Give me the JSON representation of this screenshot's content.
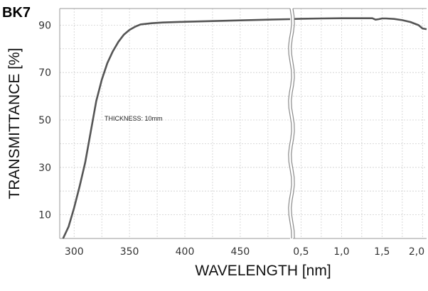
{
  "chart_data": {
    "type": "line",
    "title": "BK7",
    "xlabel": "WAVELENGTH [nm]",
    "ylabel": "TRANSMITTANCE [%]",
    "ylim": [
      0,
      97
    ],
    "grid": true,
    "broken_x_axis": true,
    "x_segments": [
      {
        "unit": "nm",
        "range": [
          287,
          495
        ],
        "ticks": [
          "300",
          "350",
          "400",
          "450"
        ]
      },
      {
        "unit": "µm",
        "range": [
          0.4,
          2.05
        ],
        "ticks": [
          "0,5",
          "1,0",
          "1,5",
          "2,0"
        ]
      }
    ],
    "y_ticks": [
      "10",
      "30",
      "50",
      "70",
      "90"
    ],
    "annotations": [
      "THICKNESS: 10mm"
    ],
    "series": [
      {
        "segment_1": [
          [
            290,
            0
          ],
          [
            295,
            5
          ],
          [
            300,
            13
          ],
          [
            305,
            22
          ],
          [
            310,
            32
          ],
          [
            315,
            45
          ],
          [
            320,
            58
          ],
          [
            325,
            67
          ],
          [
            330,
            74
          ],
          [
            335,
            79
          ],
          [
            340,
            83
          ],
          [
            345,
            86
          ],
          [
            350,
            88
          ],
          [
            355,
            89.3
          ],
          [
            360,
            90.3
          ],
          [
            370,
            90.8
          ],
          [
            380,
            91.1
          ],
          [
            400,
            91.4
          ],
          [
            425,
            91.7
          ],
          [
            450,
            92.0
          ],
          [
            475,
            92.3
          ],
          [
            495,
            92.5
          ]
        ],
        "segment_2": [
          [
            0.42,
            92.6
          ],
          [
            0.5,
            92.7
          ],
          [
            0.75,
            92.8
          ],
          [
            1.0,
            92.9
          ],
          [
            1.25,
            92.9
          ],
          [
            1.38,
            92.9
          ],
          [
            1.42,
            92.3
          ],
          [
            1.46,
            92.5
          ],
          [
            1.5,
            92.8
          ],
          [
            1.55,
            92.8
          ],
          [
            1.65,
            92.6
          ],
          [
            1.75,
            92.1
          ],
          [
            1.85,
            91.3
          ],
          [
            1.95,
            90.0
          ],
          [
            2.0,
            88.6
          ],
          [
            2.05,
            88.3
          ]
        ]
      }
    ]
  }
}
